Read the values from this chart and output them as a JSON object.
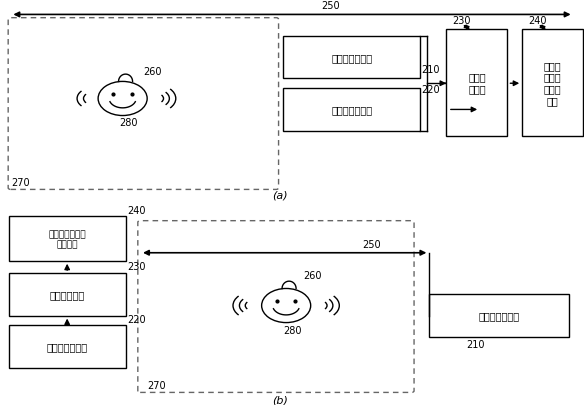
{
  "bg_color": "#ffffff",
  "line_color": "#000000",
  "box_color": "#ffffff",
  "dashed_color": "#666666",
  "fig_label_a": "(a)",
  "fig_label_b": "(b)",
  "labels": {
    "ultrasound_send": "超声波发送模块",
    "ultrasound_recv": "超声波接收模块",
    "target_detect": "目标检\n测模块",
    "laser_ctrl_a": "第一激\n光束发\n射控制\n模块",
    "laser_ctrl_b": "第一激光束发射\n控制模块",
    "target_detect_b": "目标检测模块",
    "ultrasound_recv_b": "超声波接收模块",
    "ultrasound_send_b": "超声波发送模块"
  },
  "numbers": {
    "n210": "210",
    "n220": "220",
    "n230": "230",
    "n240": "240",
    "n250": "250",
    "n260": "260",
    "n270": "270",
    "n280": "280"
  }
}
